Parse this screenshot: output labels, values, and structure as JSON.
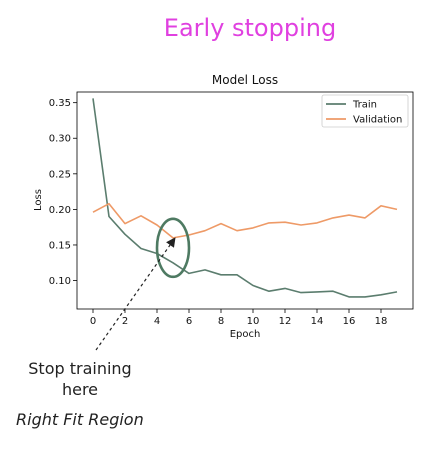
{
  "header": {
    "title": "Early stopping"
  },
  "annotation": {
    "stop_text": "Stop training here",
    "region_text": "Right Fit Region"
  },
  "chart_data": {
    "type": "line",
    "title": "Model Loss",
    "xlabel": "Epoch",
    "ylabel": "Loss",
    "xlim": [
      -1,
      20
    ],
    "ylim": [
      0.06,
      0.365
    ],
    "xticks": [
      0,
      2,
      4,
      6,
      8,
      10,
      12,
      14,
      16,
      18
    ],
    "yticks": [
      0.1,
      0.15,
      0.2,
      0.25,
      0.3,
      0.35
    ],
    "legend_position": "top-right",
    "x": [
      0,
      1,
      2,
      3,
      4,
      5,
      6,
      7,
      8,
      9,
      10,
      11,
      12,
      13,
      14,
      15,
      16,
      17,
      18,
      19
    ],
    "series": [
      {
        "name": "Train",
        "color": "#5b7d6e",
        "values": [
          0.356,
          0.19,
          0.165,
          0.145,
          0.138,
          0.125,
          0.11,
          0.115,
          0.108,
          0.108,
          0.093,
          0.085,
          0.089,
          0.083,
          0.084,
          0.085,
          0.077,
          0.077,
          0.08,
          0.084
        ]
      },
      {
        "name": "Validation",
        "color": "#ee9a67",
        "values": [
          0.196,
          0.208,
          0.18,
          0.191,
          0.178,
          0.16,
          0.164,
          0.17,
          0.18,
          0.17,
          0.174,
          0.181,
          0.182,
          0.178,
          0.181,
          0.188,
          0.192,
          0.188,
          0.205,
          0.2
        ]
      }
    ],
    "highlight": {
      "type": "ellipse",
      "color": "#4e7a62",
      "x": 5,
      "y": 0.146
    }
  }
}
